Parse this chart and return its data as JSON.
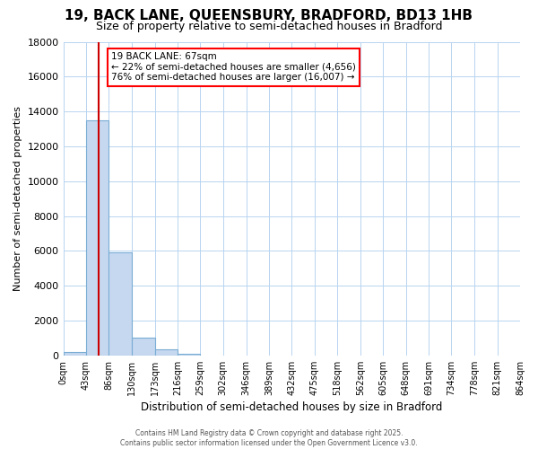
{
  "title": "19, BACK LANE, QUEENSBURY, BRADFORD, BD13 1HB",
  "subtitle": "Size of property relative to semi-detached houses in Bradford",
  "xlabel": "Distribution of semi-detached houses by size in Bradford",
  "ylabel": "Number of semi-detached properties",
  "property_size": 67,
  "property_label": "19 BACK LANE: 67sqm",
  "annotation_line1": "← 22% of semi-detached houses are smaller (4,656)",
  "annotation_line2": "76% of semi-detached houses are larger (16,007) →",
  "bin_edges": [
    0,
    43,
    86,
    130,
    173,
    216,
    259,
    302,
    346,
    389,
    432,
    475,
    518,
    562,
    605,
    648,
    691,
    734,
    778,
    821,
    864
  ],
  "bin_labels": [
    "0sqm",
    "43sqm",
    "86sqm",
    "130sqm",
    "173sqm",
    "216sqm",
    "259sqm",
    "302sqm",
    "346sqm",
    "389sqm",
    "432sqm",
    "475sqm",
    "518sqm",
    "562sqm",
    "605sqm",
    "648sqm",
    "691sqm",
    "734sqm",
    "778sqm",
    "821sqm",
    "864sqm"
  ],
  "bar_values": [
    200,
    13500,
    5900,
    1000,
    350,
    100,
    0,
    0,
    0,
    0,
    0,
    0,
    0,
    0,
    0,
    0,
    0,
    0,
    0,
    0
  ],
  "bar_color": "#c5d8f0",
  "bar_edge_color": "#7aadd4",
  "red_line_color": "#cc0000",
  "grid_color": "#b8d4f0",
  "background_color": "#ffffff",
  "plot_bg_color": "#ffffff",
  "ylim": [
    0,
    18000
  ],
  "yticks": [
    0,
    2000,
    4000,
    6000,
    8000,
    10000,
    12000,
    14000,
    16000,
    18000
  ],
  "footer_line1": "Contains HM Land Registry data © Crown copyright and database right 2025.",
  "footer_line2": "Contains public sector information licensed under the Open Government Licence v3.0."
}
